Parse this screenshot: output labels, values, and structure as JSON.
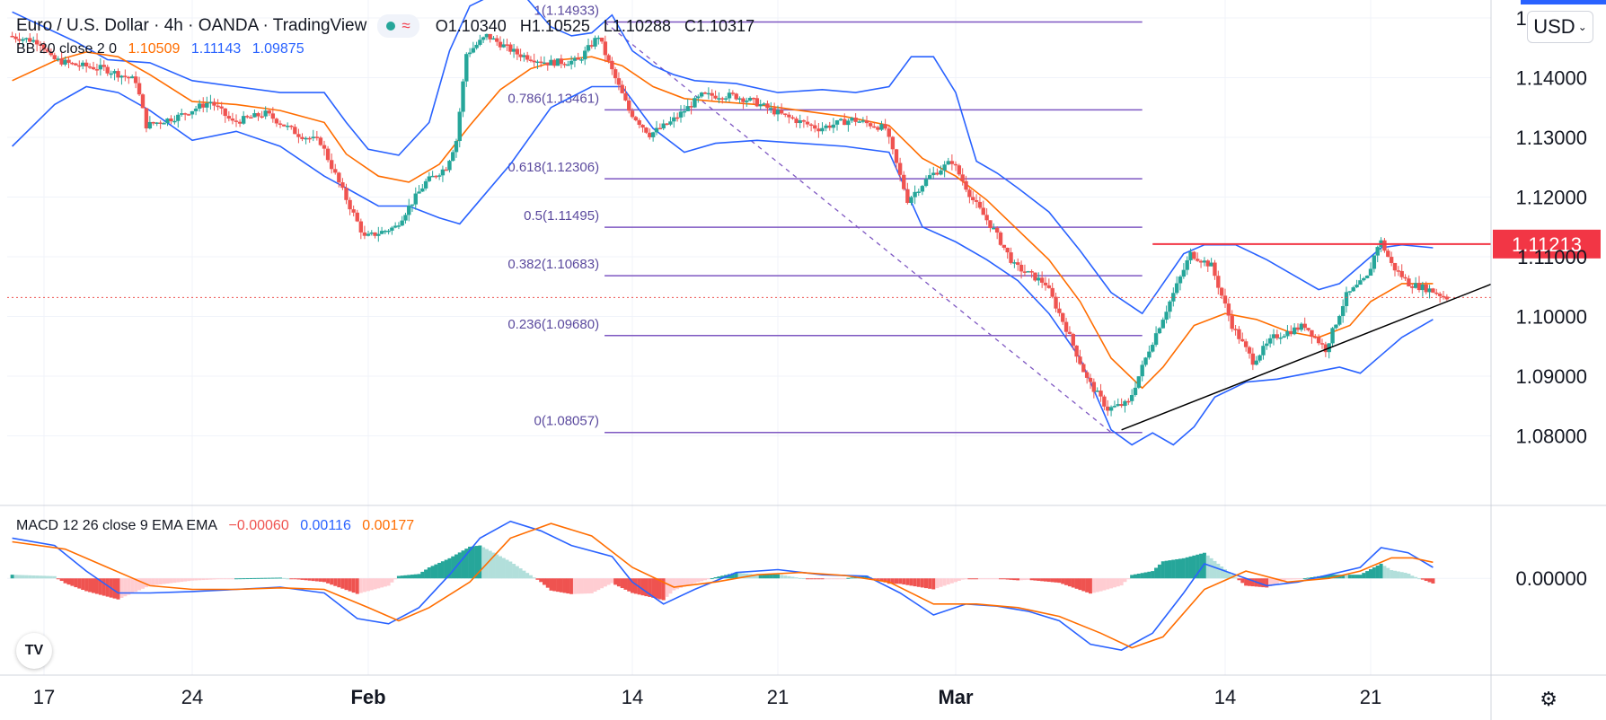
{
  "header": {
    "title": "Euro / U.S. Dollar · 4h · OANDA · TradingView",
    "open_label": "O",
    "open": "1.10340",
    "high_label": "H",
    "high": "1.10525",
    "low_label": "L",
    "low": "1.10288",
    "close_label": "C",
    "close": "1.10317"
  },
  "currency_button": "USD",
  "bb_legend": {
    "label": "BB 20 close 2 0",
    "basis": "1.10509",
    "upper": "1.11143",
    "lower": "1.09875"
  },
  "macd_legend": {
    "label": "MACD 12 26 close 9 EMA EMA",
    "hist": "−0.00060",
    "macd": "0.00116",
    "signal": "0.00177"
  },
  "icons": {
    "logo": "tradingview-logo-icon",
    "settings": "gear-icon",
    "live": "market-open-dot-icon",
    "replay": "wave-icon"
  },
  "colors": {
    "up": "#26a69a",
    "down": "#ef5350",
    "bb": "#2962ff",
    "bb_basis": "#ff6d00",
    "fib": "#7e57c2",
    "resistance": "#f23645",
    "trend": "#000000"
  },
  "chart_data": {
    "type": "candlestick",
    "symbol": "EURUSD",
    "timeframe": "4h",
    "y_ticks": [
      "1.15000",
      "1.14000",
      "1.13000",
      "1.12000",
      "1.11000",
      "1.10000",
      "1.09000",
      "1.08000"
    ],
    "ylim": [
      1.0765,
      1.153
    ],
    "x_ticks": [
      "17",
      "24",
      "Feb",
      "14",
      "21",
      "Mar",
      "14",
      "21"
    ],
    "x_tick_positions_days": [
      0,
      7,
      15,
      28,
      35,
      43,
      56,
      63
    ],
    "current_price": 1.10317,
    "price_label": "1.11213",
    "resistance": {
      "price": 1.11213,
      "from_day": 52.5,
      "to_day": 68
    },
    "trendline": {
      "from": [
        51.0,
        1.081
      ],
      "to": [
        68.0,
        1.1054
      ]
    },
    "fibonacci": {
      "from_day": 26.5,
      "to_day": 50.5,
      "high": 1.14933,
      "low": 1.08057,
      "levels": [
        {
          "label": "1(1.14933)",
          "price": 1.14933
        },
        {
          "label": "0.786(1.13461)",
          "price": 1.13461
        },
        {
          "label": "0.618(1.12306)",
          "price": 1.12306
        },
        {
          "label": "0.5(1.11495)",
          "price": 1.11495
        },
        {
          "label": "0.382(1.10683)",
          "price": 1.10683
        },
        {
          "label": "0.236(1.09680)",
          "price": 1.0968
        },
        {
          "label": "0(1.08057)",
          "price": 1.08057
        }
      ]
    },
    "price_path": [
      [
        -1.5,
        1.147
      ],
      [
        0,
        1.146
      ],
      [
        0.5,
        1.1432
      ],
      [
        1.5,
        1.1422
      ],
      [
        3,
        1.1415
      ],
      [
        4.5,
        1.1395
      ],
      [
        5,
        1.132
      ],
      [
        6.5,
        1.1335
      ],
      [
        8,
        1.136
      ],
      [
        9,
        1.1325
      ],
      [
        10.5,
        1.134
      ],
      [
        12,
        1.1305
      ],
      [
        13,
        1.1292
      ],
      [
        14,
        1.121
      ],
      [
        15,
        1.1132
      ],
      [
        16.5,
        1.115
      ],
      [
        18,
        1.1225
      ],
      [
        19,
        1.125
      ],
      [
        19.5,
        1.1295
      ],
      [
        20,
        1.144
      ],
      [
        21,
        1.147
      ],
      [
        22.5,
        1.144
      ],
      [
        24,
        1.1425
      ],
      [
        25.5,
        1.1428
      ],
      [
        26.5,
        1.147
      ],
      [
        27,
        1.1425
      ],
      [
        28,
        1.1345
      ],
      [
        29,
        1.1305
      ],
      [
        30,
        1.1325
      ],
      [
        31.5,
        1.137
      ],
      [
        33,
        1.137
      ],
      [
        34,
        1.136
      ],
      [
        35.5,
        1.1335
      ],
      [
        37,
        1.1315
      ],
      [
        38.5,
        1.133
      ],
      [
        40,
        1.1315
      ],
      [
        41,
        1.1195
      ],
      [
        42,
        1.1235
      ],
      [
        43,
        1.126
      ],
      [
        44,
        1.1195
      ],
      [
        45,
        1.1145
      ],
      [
        46,
        1.1085
      ],
      [
        47.5,
        1.1055
      ],
      [
        48.5,
        1.098
      ],
      [
        49.5,
        1.0895
      ],
      [
        50.5,
        1.0845
      ],
      [
        51.5,
        1.0855
      ],
      [
        52.5,
        1.0945
      ],
      [
        53.5,
        1.1025
      ],
      [
        54.5,
        1.1105
      ],
      [
        55.5,
        1.1085
      ],
      [
        56.5,
        1.0985
      ],
      [
        57.5,
        1.0925
      ],
      [
        58.5,
        1.0965
      ],
      [
        60,
        1.0985
      ],
      [
        61,
        1.0945
      ],
      [
        62,
        1.1035
      ],
      [
        63,
        1.1065
      ],
      [
        63.6,
        1.113
      ],
      [
        64.2,
        1.1085
      ],
      [
        65,
        1.1055
      ],
      [
        66,
        1.1045
      ],
      [
        66.8,
        1.1032
      ]
    ],
    "bb_upper": [
      [
        -1.5,
        1.151
      ],
      [
        1.5,
        1.146
      ],
      [
        3,
        1.143
      ],
      [
        5,
        1.1425
      ],
      [
        7,
        1.1395
      ],
      [
        9,
        1.1385
      ],
      [
        11,
        1.1375
      ],
      [
        13,
        1.1375
      ],
      [
        14,
        1.1325
      ],
      [
        15,
        1.128
      ],
      [
        16.5,
        1.127
      ],
      [
        18,
        1.1325
      ],
      [
        19,
        1.1445
      ],
      [
        20,
        1.152
      ],
      [
        21.5,
        1.1545
      ],
      [
        22.5,
        1.1545
      ],
      [
        24,
        1.1485
      ],
      [
        25,
        1.147
      ],
      [
        26,
        1.1475
      ],
      [
        27,
        1.1505
      ],
      [
        28,
        1.1445
      ],
      [
        29,
        1.142
      ],
      [
        30,
        1.1405
      ],
      [
        31,
        1.1395
      ],
      [
        33,
        1.139
      ],
      [
        35,
        1.1375
      ],
      [
        37,
        1.138
      ],
      [
        38.5,
        1.1375
      ],
      [
        40,
        1.1385
      ],
      [
        41,
        1.1435
      ],
      [
        42,
        1.1435
      ],
      [
        43,
        1.1375
      ],
      [
        44,
        1.126
      ],
      [
        45,
        1.124
      ],
      [
        46,
        1.1215
      ],
      [
        47.5,
        1.1175
      ],
      [
        49,
        1.111
      ],
      [
        50.5,
        1.104
      ],
      [
        52,
        1.1005
      ],
      [
        52.8,
        1.1045
      ],
      [
        54,
        1.1105
      ],
      [
        55,
        1.112
      ],
      [
        56.5,
        1.112
      ],
      [
        58,
        1.1095
      ],
      [
        59.5,
        1.1065
      ],
      [
        60.5,
        1.1045
      ],
      [
        61.5,
        1.1055
      ],
      [
        62.5,
        1.1085
      ],
      [
        63.5,
        1.1115
      ],
      [
        64.5,
        1.112
      ],
      [
        66,
        1.1115
      ]
    ],
    "bb_basis": [
      [
        -1.5,
        1.1395
      ],
      [
        0.5,
        1.1428
      ],
      [
        2,
        1.1443
      ],
      [
        3.5,
        1.1435
      ],
      [
        5,
        1.1405
      ],
      [
        7,
        1.136
      ],
      [
        9,
        1.1355
      ],
      [
        11,
        1.1345
      ],
      [
        13,
        1.1325
      ],
      [
        14,
        1.1272
      ],
      [
        15.5,
        1.1235
      ],
      [
        17,
        1.1225
      ],
      [
        18.5,
        1.1255
      ],
      [
        20,
        1.132
      ],
      [
        21.5,
        1.138
      ],
      [
        23,
        1.1415
      ],
      [
        24.5,
        1.143
      ],
      [
        26,
        1.1435
      ],
      [
        27.5,
        1.142
      ],
      [
        29,
        1.1385
      ],
      [
        30.5,
        1.1365
      ],
      [
        32,
        1.136
      ],
      [
        34,
        1.1355
      ],
      [
        36,
        1.1345
      ],
      [
        38,
        1.1335
      ],
      [
        40,
        1.132
      ],
      [
        41.5,
        1.1265
      ],
      [
        43,
        1.1235
      ],
      [
        44.5,
        1.1195
      ],
      [
        46,
        1.1145
      ],
      [
        47.5,
        1.1095
      ],
      [
        49,
        1.1025
      ],
      [
        50.5,
        1.093
      ],
      [
        52,
        1.088
      ],
      [
        53,
        1.0915
      ],
      [
        54.5,
        1.0985
      ],
      [
        56,
        1.1005
      ],
      [
        57.5,
        1.0995
      ],
      [
        59,
        1.0975
      ],
      [
        60.5,
        1.0965
      ],
      [
        62,
        1.0985
      ],
      [
        63,
        1.1025
      ],
      [
        64.5,
        1.1055
      ],
      [
        66,
        1.1055
      ]
    ],
    "bb_lower": [
      [
        -1.5,
        1.1285
      ],
      [
        0.5,
        1.1355
      ],
      [
        2,
        1.1385
      ],
      [
        3.5,
        1.1375
      ],
      [
        5,
        1.1345
      ],
      [
        7,
        1.1295
      ],
      [
        9,
        1.131
      ],
      [
        11,
        1.1285
      ],
      [
        13,
        1.1235
      ],
      [
        14,
        1.1215
      ],
      [
        15.5,
        1.1185
      ],
      [
        17,
        1.1185
      ],
      [
        18.5,
        1.1165
      ],
      [
        19.5,
        1.1155
      ],
      [
        20.5,
        1.1195
      ],
      [
        22,
        1.1255
      ],
      [
        24,
        1.135
      ],
      [
        26,
        1.1385
      ],
      [
        27.5,
        1.1385
      ],
      [
        29,
        1.1315
      ],
      [
        30.5,
        1.1275
      ],
      [
        32,
        1.129
      ],
      [
        34,
        1.1295
      ],
      [
        36,
        1.129
      ],
      [
        38,
        1.1285
      ],
      [
        40,
        1.1275
      ],
      [
        41.5,
        1.115
      ],
      [
        43,
        1.1125
      ],
      [
        44.5,
        1.1095
      ],
      [
        46,
        1.106
      ],
      [
        47.5,
        1.1005
      ],
      [
        49,
        1.093
      ],
      [
        50.5,
        1.081
      ],
      [
        51.5,
        1.0785
      ],
      [
        52.5,
        1.0805
      ],
      [
        53.5,
        1.0785
      ],
      [
        54.5,
        1.0815
      ],
      [
        55.5,
        1.0865
      ],
      [
        57,
        1.089
      ],
      [
        58.5,
        1.0895
      ],
      [
        60,
        1.0905
      ],
      [
        61.5,
        1.0915
      ],
      [
        62.5,
        1.0905
      ],
      [
        63.5,
        1.0935
      ],
      [
        64.5,
        1.0965
      ],
      [
        66,
        1.0995
      ]
    ],
    "macd_ylim": [
      -0.012,
      0.0085
    ],
    "macd_zero_label": "0.00000",
    "macd_line": [
      [
        -1.5,
        0.0055
      ],
      [
        0.5,
        0.0045
      ],
      [
        2,
        0.001
      ],
      [
        3.5,
        -0.002
      ],
      [
        5,
        -0.002
      ],
      [
        7,
        -0.0018
      ],
      [
        9,
        -0.0015
      ],
      [
        11,
        -0.0012
      ],
      [
        13,
        -0.002
      ],
      [
        14.5,
        -0.0055
      ],
      [
        16,
        -0.0062
      ],
      [
        17.5,
        -0.004
      ],
      [
        19,
        0.0005
      ],
      [
        20.5,
        0.0055
      ],
      [
        22,
        0.0078
      ],
      [
        23.5,
        0.0065
      ],
      [
        25,
        0.0045
      ],
      [
        27,
        0.003
      ],
      [
        28,
        -0.0005
      ],
      [
        29.5,
        -0.0035
      ],
      [
        31,
        -0.0015
      ],
      [
        33,
        0.0008
      ],
      [
        35,
        0.0012
      ],
      [
        37,
        0.0005
      ],
      [
        39,
        0.0003
      ],
      [
        40.5,
        -0.002
      ],
      [
        42,
        -0.005
      ],
      [
        43.5,
        -0.0035
      ],
      [
        45,
        -0.0038
      ],
      [
        46.5,
        -0.0045
      ],
      [
        48,
        -0.0058
      ],
      [
        49.5,
        -0.009
      ],
      [
        51,
        -0.0098
      ],
      [
        52.5,
        -0.0075
      ],
      [
        54,
        -0.002
      ],
      [
        55,
        0.002
      ],
      [
        56.5,
        0.0005
      ],
      [
        58,
        -0.001
      ],
      [
        59.5,
        -0.0005
      ],
      [
        61,
        0.0005
      ],
      [
        62.5,
        0.0015
      ],
      [
        63.5,
        0.0042
      ],
      [
        64.8,
        0.0035
      ],
      [
        66,
        0.0015
      ]
    ],
    "signal_line": [
      [
        -1.5,
        0.005
      ],
      [
        1,
        0.004
      ],
      [
        3,
        0.0015
      ],
      [
        5,
        -0.001
      ],
      [
        7,
        -0.0015
      ],
      [
        9,
        -0.0015
      ],
      [
        11,
        -0.0013
      ],
      [
        13,
        -0.0015
      ],
      [
        15,
        -0.004
      ],
      [
        16.5,
        -0.0058
      ],
      [
        18,
        -0.004
      ],
      [
        20,
        -0.0005
      ],
      [
        22,
        0.0055
      ],
      [
        24,
        0.0075
      ],
      [
        26,
        0.0058
      ],
      [
        28,
        0.0015
      ],
      [
        30,
        -0.0012
      ],
      [
        32,
        -0.0005
      ],
      [
        34,
        0.0005
      ],
      [
        36,
        0.0008
      ],
      [
        38,
        0.0004
      ],
      [
        40,
        -0.0005
      ],
      [
        42,
        -0.0035
      ],
      [
        44,
        -0.0035
      ],
      [
        46,
        -0.004
      ],
      [
        48,
        -0.0052
      ],
      [
        50,
        -0.0075
      ],
      [
        51.5,
        -0.0095
      ],
      [
        53,
        -0.008
      ],
      [
        55,
        -0.0015
      ],
      [
        57,
        0.001
      ],
      [
        59,
        -0.0005
      ],
      [
        61,
        0.0
      ],
      [
        62.5,
        0.001
      ],
      [
        64,
        0.0028
      ],
      [
        65,
        0.0028
      ],
      [
        66,
        0.0022
      ]
    ]
  }
}
